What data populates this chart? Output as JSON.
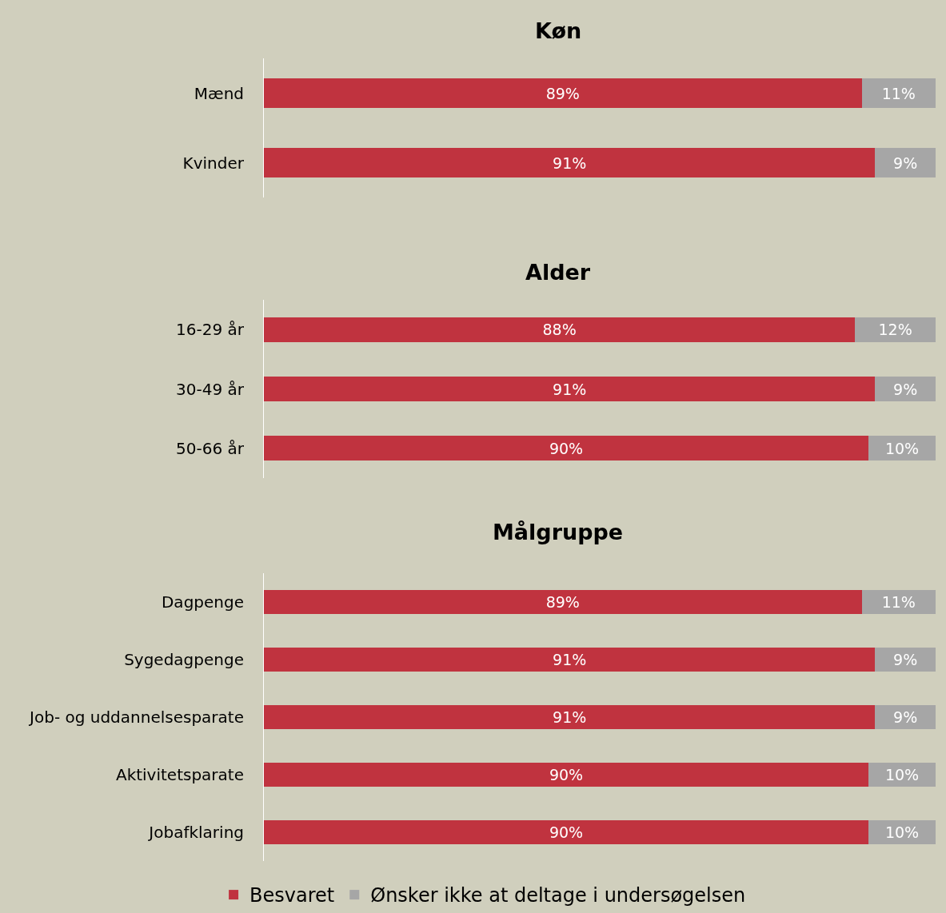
{
  "chart_data": [
    {
      "type": "bar",
      "title": "Køn",
      "orientation": "horizontal",
      "stacked": true,
      "categories": [
        "Mænd",
        "Kvinder"
      ],
      "xlim": [
        0,
        100
      ],
      "tick_labels": "y",
      "grid": false,
      "legend": "bottom",
      "series": [
        {
          "name": "Besvaret",
          "color": "#c0333f",
          "values": [
            89,
            91
          ],
          "value_labels": [
            "89%",
            "91%"
          ]
        },
        {
          "name": "Ønsker ikke at deltage i undersøgelsen",
          "color": "#a6a6a6",
          "values": [
            11,
            9
          ],
          "value_labels": [
            "11%",
            "9%"
          ]
        }
      ]
    },
    {
      "type": "bar",
      "title": "Alder",
      "orientation": "horizontal",
      "stacked": true,
      "categories": [
        "16-29 år",
        "30-49 år",
        "50-66 år"
      ],
      "xlim": [
        0,
        100
      ],
      "tick_labels": "y",
      "grid": false,
      "legend": "bottom",
      "series": [
        {
          "name": "Besvaret",
          "color": "#c0333f",
          "values": [
            88,
            91,
            90
          ],
          "value_labels": [
            "88%",
            "91%",
            "90%"
          ]
        },
        {
          "name": "Ønsker ikke at deltage i undersøgelsen",
          "color": "#a6a6a6",
          "values": [
            12,
            9,
            10
          ],
          "value_labels": [
            "12%",
            "9%",
            "10%"
          ]
        }
      ]
    },
    {
      "type": "bar",
      "title": "Målgruppe",
      "orientation": "horizontal",
      "stacked": true,
      "categories": [
        "Dagpenge",
        "Sygedagpenge",
        "Job- og uddannelsesparate",
        "Aktivitetsparate",
        "Jobafklaring"
      ],
      "xlim": [
        0,
        100
      ],
      "tick_labels": "y",
      "grid": false,
      "legend": "bottom",
      "series": [
        {
          "name": "Besvaret",
          "color": "#c0333f",
          "values": [
            89,
            91,
            91,
            90,
            90
          ],
          "value_labels": [
            "89%",
            "91%",
            "91%",
            "90%",
            "90%"
          ]
        },
        {
          "name": "Ønsker ikke at deltage i undersøgelsen",
          "color": "#a6a6a6",
          "values": [
            11,
            9,
            9,
            10,
            10
          ],
          "value_labels": [
            "11%",
            "9%",
            "9%",
            "10%",
            "10%"
          ]
        }
      ]
    }
  ]
}
